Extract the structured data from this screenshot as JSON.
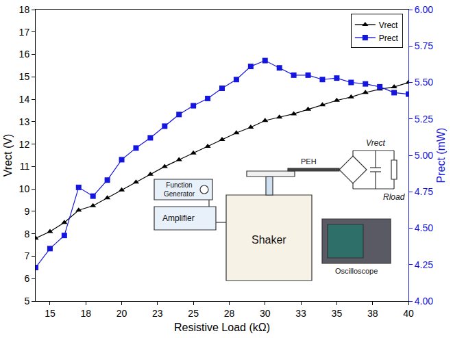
{
  "chart_data": {
    "type": "line",
    "x_label": "Resistive Load (kΩ)",
    "y_label": "Vrect (V)",
    "y2_label": "Prect (mW)",
    "x": [
      14,
      15,
      16,
      17,
      18,
      19,
      20,
      21,
      22,
      23,
      24,
      25,
      26,
      27,
      28,
      29,
      30,
      31,
      32,
      33,
      34,
      35,
      36,
      37,
      38,
      39,
      40
    ],
    "series": [
      {
        "name": "Vrect",
        "color": "#000000",
        "marker": "triangle-up",
        "line_style": "solid",
        "axis": "y",
        "values": [
          7.8,
          8.1,
          8.5,
          9.05,
          9.25,
          9.6,
          9.95,
          10.3,
          10.65,
          11.0,
          11.3,
          11.6,
          11.9,
          12.2,
          12.5,
          12.75,
          13.05,
          13.2,
          13.35,
          13.55,
          13.75,
          13.95,
          14.1,
          14.3,
          14.45,
          14.55,
          14.75
        ]
      },
      {
        "name": "Prect",
        "color": "#1515e0",
        "marker": "square",
        "line_style": "solid",
        "axis": "y2",
        "values": [
          4.23,
          4.36,
          4.45,
          4.78,
          4.72,
          4.83,
          4.97,
          5.05,
          5.12,
          5.2,
          5.28,
          5.34,
          5.39,
          5.46,
          5.52,
          5.61,
          5.65,
          5.6,
          5.55,
          5.55,
          5.52,
          5.53,
          5.5,
          5.49,
          5.47,
          5.43,
          5.42
        ]
      }
    ],
    "xlim": [
      14,
      40
    ],
    "xticks": [
      15,
      {
        "value": 17.5,
        "label": "18"
      },
      20,
      {
        "value": 22.5,
        "label": "23"
      },
      25,
      {
        "value": 27.5,
        "label": "28"
      },
      30,
      {
        "value": 32.5,
        "label": "33"
      },
      35,
      {
        "value": 37.5,
        "label": "38"
      },
      40
    ],
    "ylim": [
      5,
      18
    ],
    "yticks": [
      5,
      6,
      7,
      8,
      9,
      10,
      11,
      12,
      13,
      14,
      15,
      16,
      17,
      18
    ],
    "y2lim": [
      4,
      6
    ],
    "y2ticks": [
      {
        "value": 4,
        "label": "4.00"
      },
      {
        "value": 4.25,
        "label": "4.25"
      },
      {
        "value": 4.5,
        "label": "4.50"
      },
      {
        "value": 4.75,
        "label": "4.75"
      },
      {
        "value": 5,
        "label": "5.00"
      },
      {
        "value": 5.25,
        "label": "5.25"
      },
      {
        "value": 5.5,
        "label": "5.50"
      },
      {
        "value": 5.75,
        "label": "5.75"
      },
      {
        "value": 6,
        "label": "6.00"
      }
    ],
    "grid": false,
    "legend": "top right",
    "annotations": [
      "Function Generator",
      "Amplifier",
      "Shaker",
      "PEH",
      "Vrect",
      "Rload",
      "Oscilloscope"
    ]
  }
}
